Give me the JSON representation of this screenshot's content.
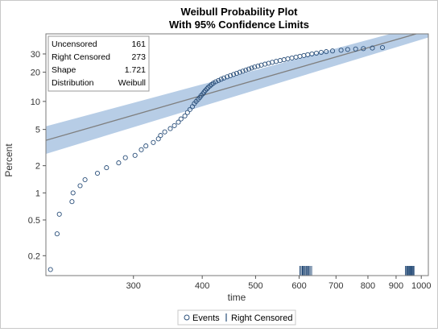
{
  "chart_data": {
    "type": "scatter",
    "title": "Weibull Probability Plot",
    "subtitle": "With 95% Confidence Limits",
    "xlabel": "time",
    "ylabel": "Percent",
    "x_scale": "log",
    "y_scale": "weibull",
    "xlim": [
      208,
      1030
    ],
    "ylim": [
      0.12,
      45
    ],
    "x_ticks": [
      300,
      400,
      500,
      600,
      700,
      800,
      900,
      1000
    ],
    "y_ticks": [
      0.2,
      0.5,
      1,
      2,
      5,
      10,
      20,
      30
    ],
    "inset": {
      "rows": [
        {
          "label": "Uncensored",
          "value": "161"
        },
        {
          "label": "Right Censored",
          "value": "273"
        },
        {
          "label": "Shape",
          "value": "1.721"
        },
        {
          "label": "Distribution",
          "value": "Weibull"
        }
      ]
    },
    "legend": {
      "placement": "bottom",
      "items": [
        {
          "marker": "circle",
          "label": "Events"
        },
        {
          "marker": "bar",
          "label": "Right Censored"
        }
      ]
    },
    "fit_line": {
      "points": [
        [
          208,
          3.8
        ],
        [
          1030,
          48
        ]
      ],
      "color": "#7f7f7f"
    },
    "confidence_band": {
      "upper": [
        [
          208,
          5.4
        ],
        [
          1030,
          54
        ]
      ],
      "lower": [
        [
          208,
          2.7
        ],
        [
          1030,
          42
        ]
      ],
      "color": "#b7cde6"
    },
    "series": [
      {
        "name": "Events",
        "marker_color": "#2a4f7a",
        "points": [
          [
            212,
            0.14
          ],
          [
            218,
            0.35
          ],
          [
            220,
            0.58
          ],
          [
            232,
            0.8
          ],
          [
            233,
            1.0
          ],
          [
            240,
            1.2
          ],
          [
            245,
            1.4
          ],
          [
            258,
            1.65
          ],
          [
            268,
            1.9
          ],
          [
            282,
            2.15
          ],
          [
            290,
            2.45
          ],
          [
            302,
            2.6
          ],
          [
            310,
            3.0
          ],
          [
            316,
            3.3
          ],
          [
            326,
            3.6
          ],
          [
            333,
            3.95
          ],
          [
            336,
            4.3
          ],
          [
            342,
            4.7
          ],
          [
            350,
            5.1
          ],
          [
            356,
            5.5
          ],
          [
            362,
            6.0
          ],
          [
            366,
            6.5
          ],
          [
            372,
            7.0
          ],
          [
            376,
            7.6
          ],
          [
            380,
            8.2
          ],
          [
            384,
            8.8
          ],
          [
            387,
            9.5
          ],
          [
            390,
            10.0
          ],
          [
            393,
            10.5
          ],
          [
            396,
            11.0
          ],
          [
            398,
            11.5
          ],
          [
            401,
            12.0
          ],
          [
            403,
            12.5
          ],
          [
            405,
            13.0
          ],
          [
            408,
            13.5
          ],
          [
            410,
            14.0
          ],
          [
            413,
            14.5
          ],
          [
            416,
            15.0
          ],
          [
            419,
            15.5
          ],
          [
            423,
            16.0
          ],
          [
            428,
            16.5
          ],
          [
            433,
            17.0
          ],
          [
            438,
            17.5
          ],
          [
            444,
            18.0
          ],
          [
            450,
            18.5
          ],
          [
            456,
            19.0
          ],
          [
            462,
            19.5
          ],
          [
            468,
            20.0
          ],
          [
            474,
            20.5
          ],
          [
            480,
            21.0
          ],
          [
            486,
            21.5
          ],
          [
            492,
            22.0
          ],
          [
            498,
            22.5
          ],
          [
            505,
            23.0
          ],
          [
            512,
            23.5
          ],
          [
            520,
            24.0
          ],
          [
            528,
            24.5
          ],
          [
            536,
            25.0
          ],
          [
            545,
            25.5
          ],
          [
            554,
            26.0
          ],
          [
            563,
            26.5
          ],
          [
            572,
            27.0
          ],
          [
            582,
            27.5
          ],
          [
            592,
            28.0
          ],
          [
            602,
            28.5
          ],
          [
            612,
            29.0
          ],
          [
            622,
            29.5
          ],
          [
            633,
            30.0
          ],
          [
            645,
            30.5
          ],
          [
            658,
            31.0
          ],
          [
            672,
            31.5
          ],
          [
            690,
            32.0
          ],
          [
            715,
            32.5
          ],
          [
            735,
            33.0
          ],
          [
            760,
            33.3
          ],
          [
            785,
            33.6
          ],
          [
            815,
            34.0
          ],
          [
            850,
            34.3
          ]
        ]
      },
      {
        "name": "Right Censored",
        "marker_color": "#2a4f7a",
        "times": [
          602,
          605,
          608,
          610,
          613,
          615,
          618,
          620,
          623,
          625,
          628,
          632,
          936,
          940,
          943,
          946,
          949,
          952,
          955,
          958,
          961,
          964,
          967,
          970
        ]
      }
    ]
  }
}
